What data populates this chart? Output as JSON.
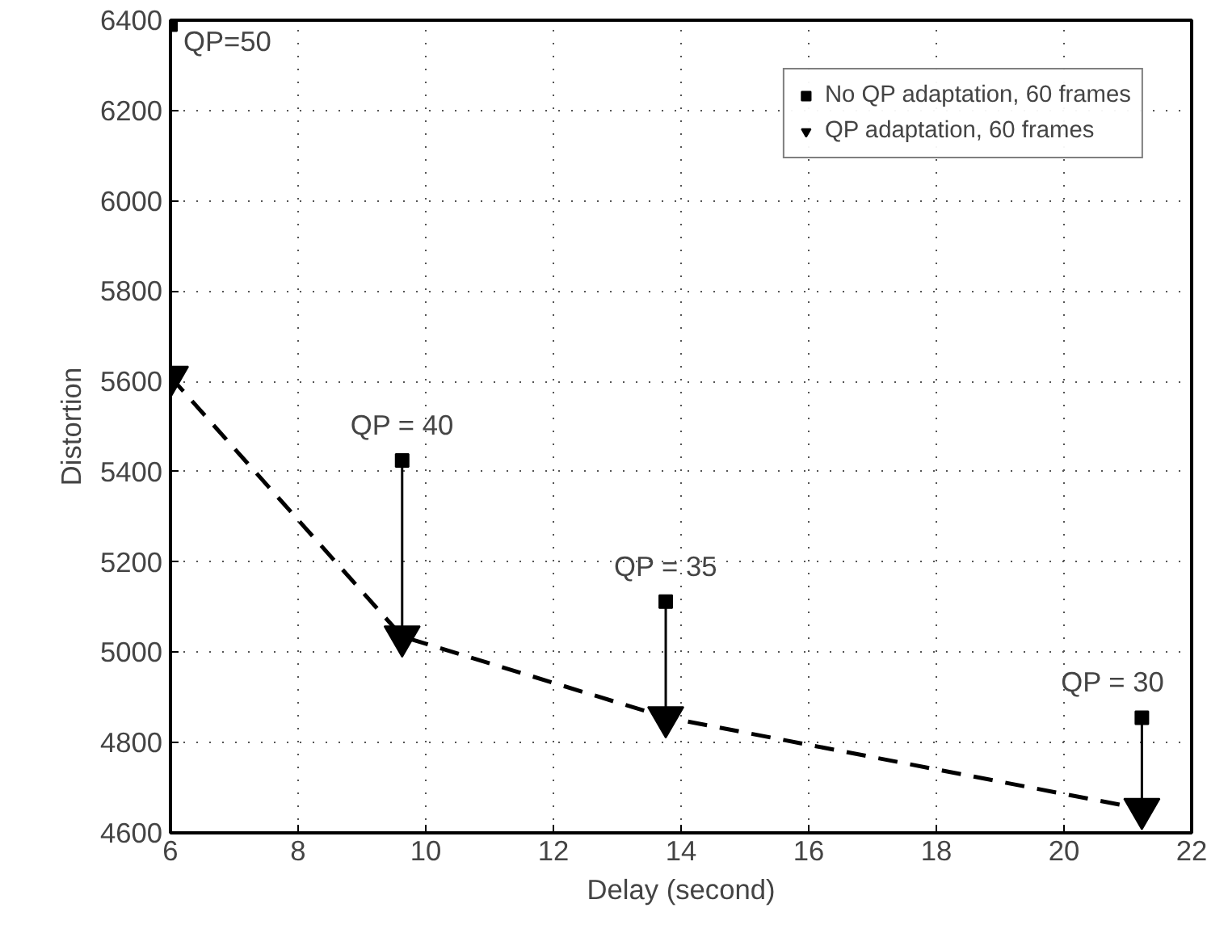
{
  "chart_data": {
    "type": "scatter",
    "xlabel": "Delay (second)",
    "ylabel": "Distortion",
    "xlim": [
      6,
      22
    ],
    "ylim": [
      4600,
      6400
    ],
    "xticks": [
      6,
      8,
      10,
      12,
      14,
      16,
      18,
      20,
      22
    ],
    "yticks": [
      4600,
      4800,
      5000,
      5200,
      5400,
      5600,
      5800,
      6000,
      6200,
      6400
    ],
    "grid": true,
    "legend": "top right",
    "series": [
      {
        "name": "No QP adaptation, 60 frames",
        "marker": "square",
        "color": "#000000",
        "x": [
          6,
          9.63,
          13.76,
          21.22
        ],
        "values": [
          6390,
          5425,
          5112,
          4855
        ]
      },
      {
        "name": "QP adaptation, 60 frames",
        "type": "line",
        "marker": "triangle",
        "line_style": "dashed",
        "color": "#000000",
        "x": [
          6,
          9.63,
          13.76,
          21.22
        ],
        "values": [
          5610,
          5035,
          4856,
          4653
        ]
      }
    ],
    "annotations": [
      {
        "text": "QP=50",
        "x": 6,
        "y": 6390
      },
      {
        "text": "QP = 40",
        "x": 9.63,
        "y": 5425
      },
      {
        "text": "QP = 35",
        "x": 13.76,
        "y": 5112
      },
      {
        "text": "QP = 30",
        "x": 21.22,
        "y": 4855
      }
    ]
  }
}
